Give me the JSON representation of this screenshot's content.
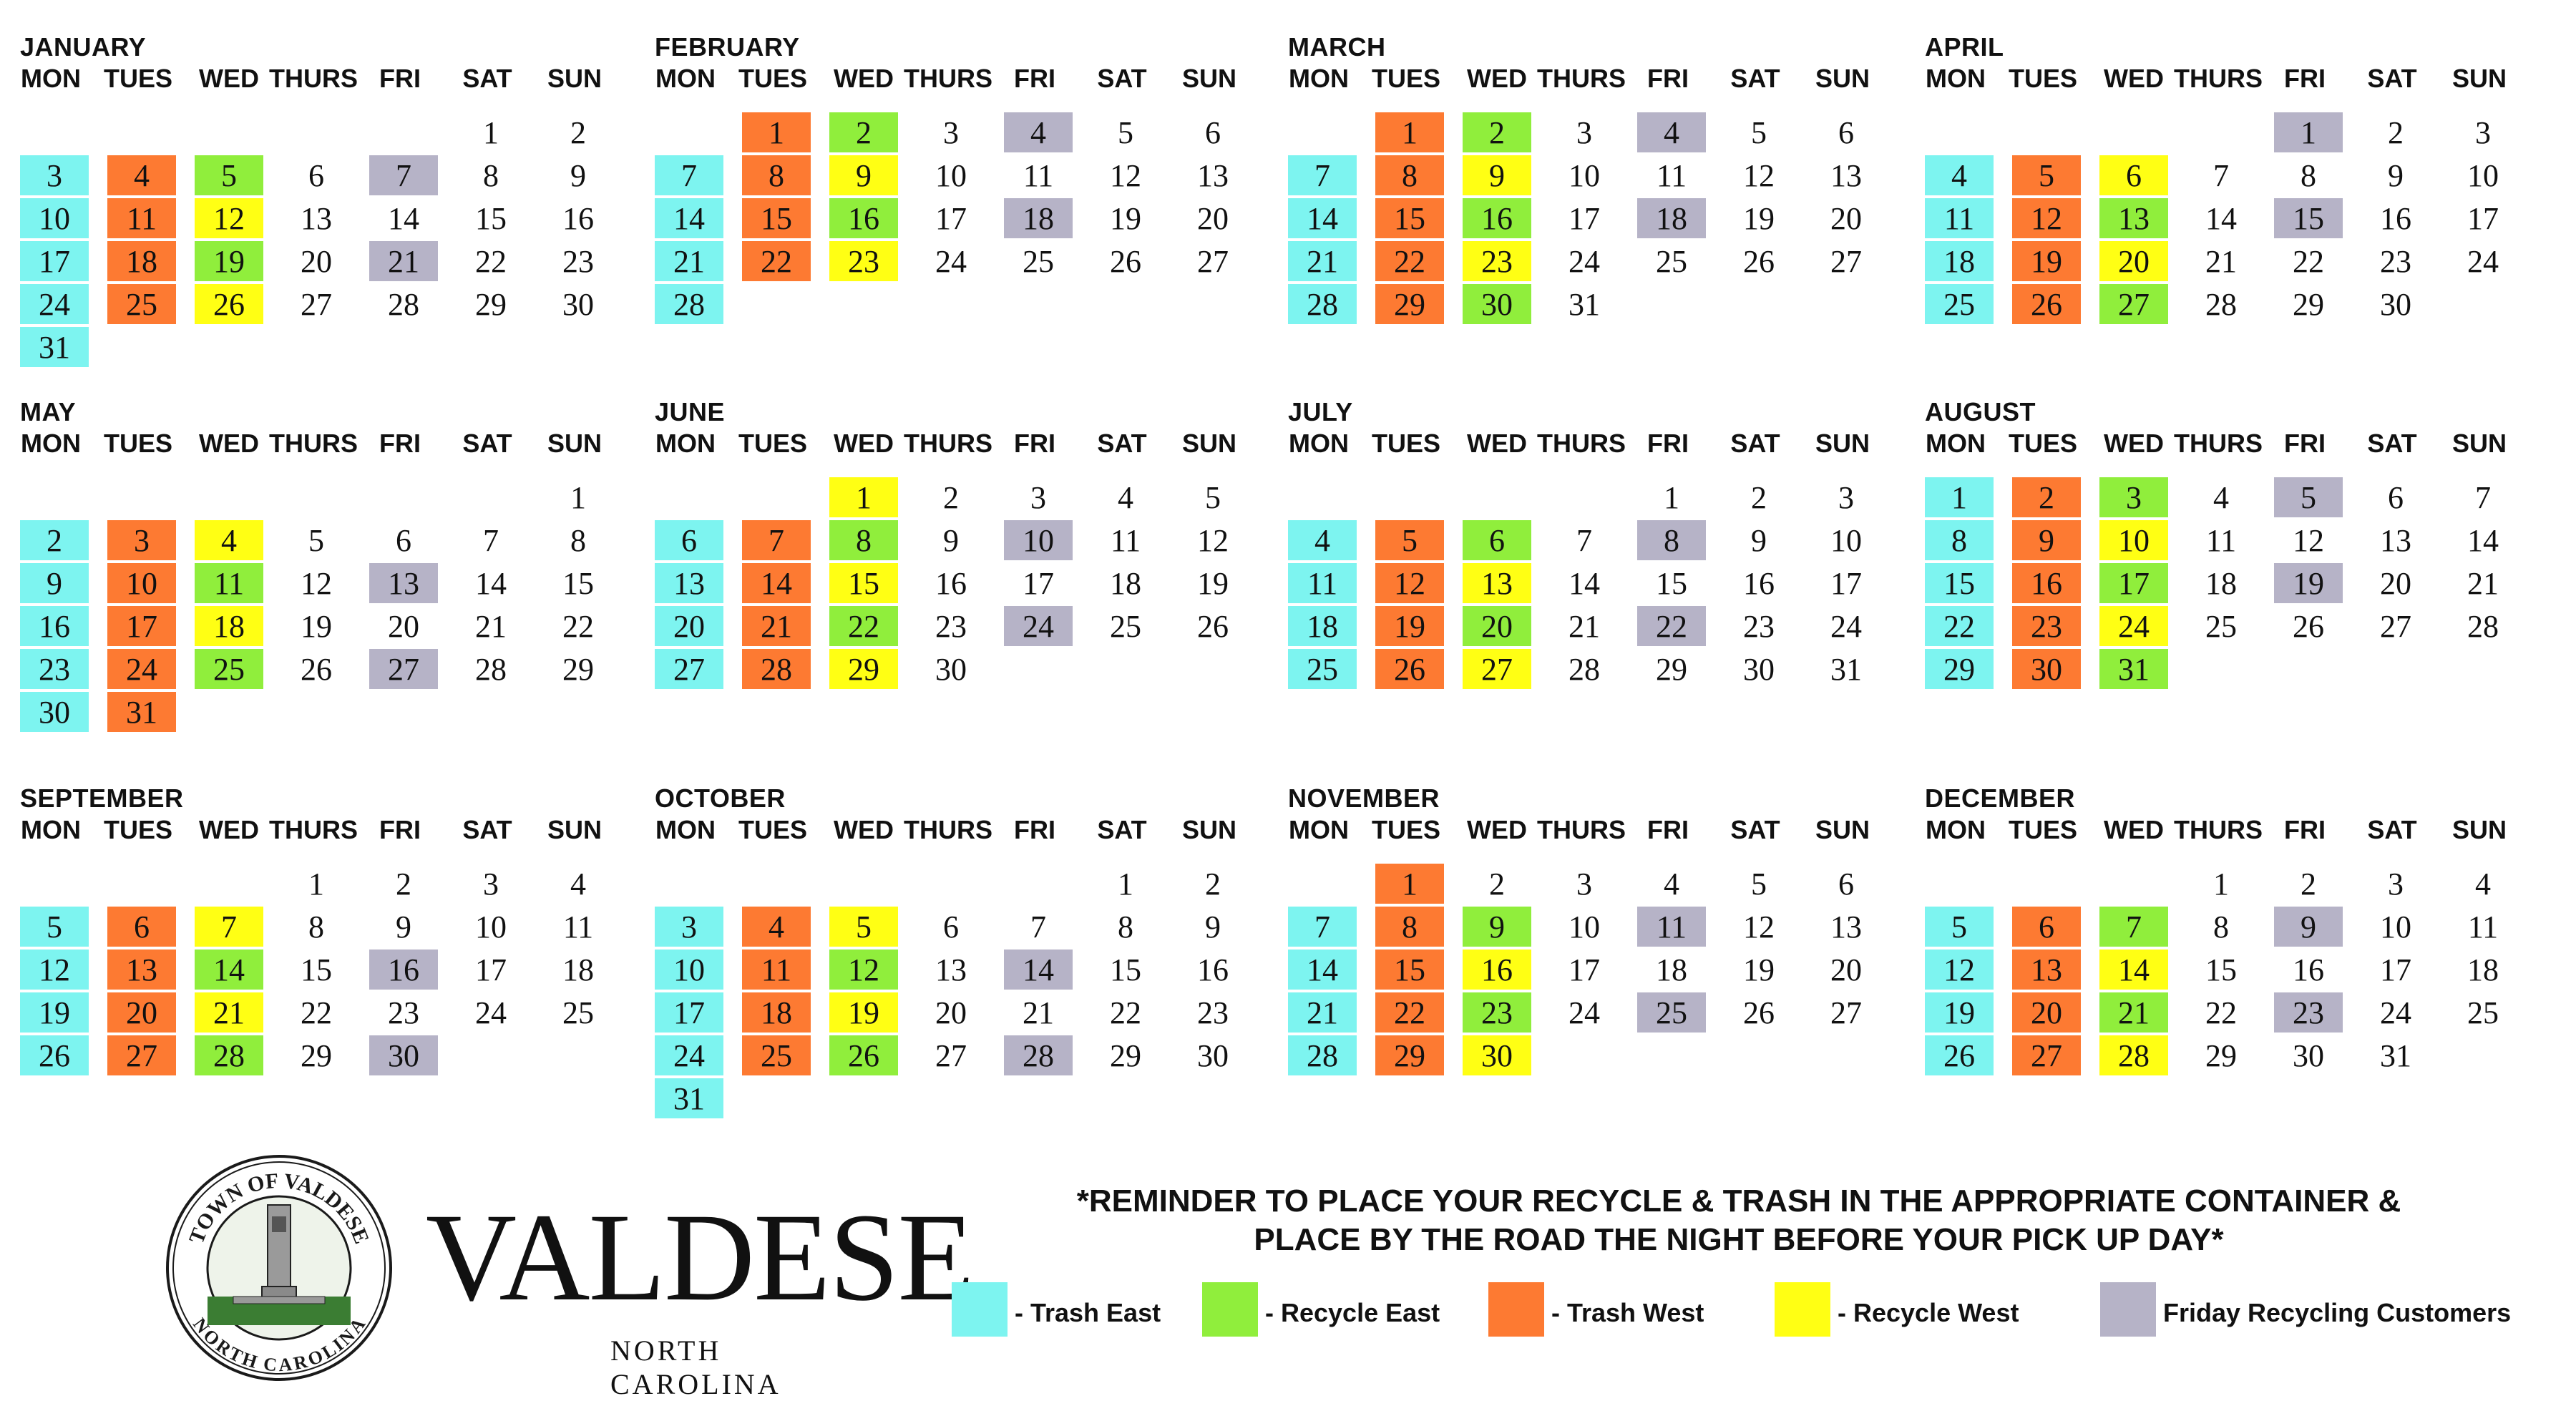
{
  "days_of_week": [
    "MON",
    "TUES",
    "WED",
    "THURS",
    "FRI",
    "SAT",
    "SUN"
  ],
  "colors": {
    "trash_east": "#7df4f0",
    "recycle_east": "#90ee3c",
    "trash_west": "#fd7a32",
    "recycle_west": "#ffff14",
    "friday_recycling": "#b6b3c7"
  },
  "months": [
    {
      "name": "JANUARY",
      "first_weekday": 5,
      "days": 31,
      "trash_east": [
        3,
        10,
        17,
        24,
        31
      ],
      "trash_west": [
        4,
        11,
        18,
        25
      ],
      "recycle_east": [
        5,
        19
      ],
      "recycle_west": [
        12,
        26
      ],
      "friday_recycling": [
        7,
        21
      ]
    },
    {
      "name": "FEBRUARY",
      "first_weekday": 1,
      "days": 28,
      "trash_east": [
        7,
        14,
        21,
        28
      ],
      "trash_west": [
        1,
        8,
        15,
        22
      ],
      "recycle_east": [
        2,
        16
      ],
      "recycle_west": [
        9,
        23
      ],
      "friday_recycling": [
        4,
        18
      ]
    },
    {
      "name": "MARCH",
      "first_weekday": 1,
      "days": 31,
      "trash_east": [
        7,
        14,
        21,
        28
      ],
      "trash_west": [
        1,
        8,
        15,
        22,
        29
      ],
      "recycle_east": [
        2,
        16,
        30
      ],
      "recycle_west": [
        9,
        23
      ],
      "friday_recycling": [
        4,
        18
      ]
    },
    {
      "name": "APRIL",
      "first_weekday": 4,
      "days": 30,
      "trash_east": [
        4,
        11,
        18,
        25
      ],
      "trash_west": [
        5,
        12,
        19,
        26
      ],
      "recycle_east": [
        13,
        27
      ],
      "recycle_west": [
        6,
        20
      ],
      "friday_recycling": [
        1,
        15
      ]
    },
    {
      "name": "MAY",
      "first_weekday": 6,
      "days": 31,
      "trash_east": [
        2,
        9,
        16,
        23,
        30
      ],
      "trash_west": [
        3,
        10,
        17,
        24,
        31
      ],
      "recycle_east": [
        11,
        25
      ],
      "recycle_west": [
        4,
        18
      ],
      "friday_recycling": [
        13,
        27
      ]
    },
    {
      "name": "JUNE",
      "first_weekday": 2,
      "days": 30,
      "trash_east": [
        6,
        13,
        20,
        27
      ],
      "trash_west": [
        7,
        14,
        21,
        28
      ],
      "recycle_east": [
        8,
        22
      ],
      "recycle_west": [
        1,
        15,
        29
      ],
      "friday_recycling": [
        10,
        24
      ]
    },
    {
      "name": "JULY",
      "first_weekday": 4,
      "days": 31,
      "trash_east": [
        4,
        11,
        18,
        25
      ],
      "trash_west": [
        5,
        12,
        19,
        26
      ],
      "recycle_east": [
        6,
        20
      ],
      "recycle_west": [
        13,
        27
      ],
      "friday_recycling": [
        8,
        22
      ]
    },
    {
      "name": "AUGUST",
      "first_weekday": 0,
      "days": 31,
      "trash_east": [
        1,
        8,
        15,
        22,
        29
      ],
      "trash_west": [
        2,
        9,
        16,
        23,
        30
      ],
      "recycle_east": [
        3,
        17,
        31
      ],
      "recycle_west": [
        10,
        24
      ],
      "friday_recycling": [
        5,
        19
      ]
    },
    {
      "name": "SEPTEMBER",
      "first_weekday": 3,
      "days": 30,
      "trash_east": [
        5,
        12,
        19,
        26
      ],
      "trash_west": [
        6,
        13,
        20,
        27
      ],
      "recycle_east": [
        14,
        28
      ],
      "recycle_west": [
        7,
        21
      ],
      "friday_recycling": [
        16,
        30
      ]
    },
    {
      "name": "OCTOBER",
      "first_weekday": 5,
      "days": 31,
      "trash_east": [
        3,
        10,
        17,
        24,
        31
      ],
      "trash_west": [
        4,
        11,
        18,
        25
      ],
      "recycle_east": [
        12,
        26
      ],
      "recycle_west": [
        5,
        19
      ],
      "friday_recycling": [
        14,
        28
      ]
    },
    {
      "name": "NOVEMBER",
      "first_weekday": 1,
      "days": 30,
      "trash_east": [
        7,
        14,
        21,
        28
      ],
      "trash_west": [
        1,
        8,
        15,
        22,
        29
      ],
      "recycle_east": [
        9,
        23
      ],
      "recycle_west": [
        16,
        30
      ],
      "friday_recycling": [
        11,
        25
      ]
    },
    {
      "name": "DECEMBER",
      "first_weekday": 3,
      "days": 31,
      "trash_east": [
        5,
        12,
        19,
        26
      ],
      "trash_west": [
        6,
        13,
        20,
        27
      ],
      "recycle_east": [
        7,
        21
      ],
      "recycle_west": [
        14,
        28
      ],
      "friday_recycling": [
        9,
        23
      ]
    }
  ],
  "logo": {
    "seal_top_text": "TOWN OF VALDESE",
    "seal_bottom_text": "NORTH CAROLINA",
    "wordmark": "VALDESE",
    "wordmark_sub": "NORTH CAROLINA"
  },
  "reminder": {
    "line1": "*REMINDER TO PLACE YOUR RECYCLE & TRASH IN THE APPROPRIATE CONTAINER &",
    "line2": "PLACE BY THE ROAD THE NIGHT BEFORE YOUR PICK UP DAY*"
  },
  "legend": [
    {
      "key": "trash_east",
      "label": "- Trash East"
    },
    {
      "key": "recycle_east",
      "label": "- Recycle East"
    },
    {
      "key": "trash_west",
      "label": "- Trash West"
    },
    {
      "key": "recycle_west",
      "label": "- Recycle West"
    },
    {
      "key": "friday_recycling",
      "label": "Friday Recycling Customers"
    }
  ]
}
